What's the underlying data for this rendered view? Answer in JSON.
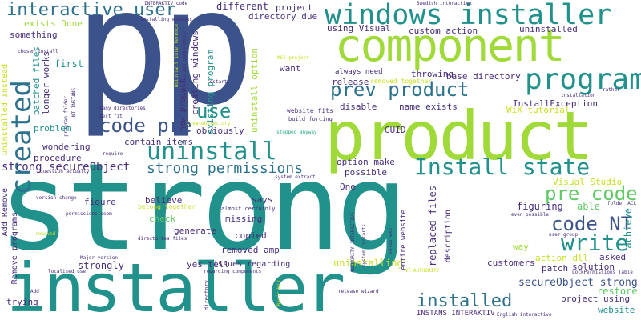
{
  "colors": {
    "navy": "#3b528b",
    "teal": "#21918c",
    "lime": "#a0da39",
    "green": "#5ec962",
    "yellow": "#c8e020",
    "mid": "#2c728e",
    "purple": "#472d7b",
    "deep": "#440154",
    "sea": "#28ae80"
  },
  "words": [
    {
      "text": "strong"
    },
    {
      "text": "pp"
    },
    {
      "text": "product"
    },
    {
      "text": "component"
    },
    {
      "text": "installer"
    },
    {
      "text": "windows installer"
    },
    {
      "text": "program"
    },
    {
      "text": "prev product"
    },
    {
      "text": "created"
    },
    {
      "text": "interactive user"
    },
    {
      "text": "uninstall"
    },
    {
      "text": "Install state"
    },
    {
      "text": "code pre"
    },
    {
      "text": "strong permissions"
    },
    {
      "text": "use"
    },
    {
      "text": "code NT"
    },
    {
      "text": "write"
    },
    {
      "text": "pre code"
    },
    {
      "text": "installed"
    },
    {
      "text": "secureObject strong"
    },
    {
      "text": "strong secureObject"
    },
    {
      "text": "different"
    },
    {
      "text": "project"
    },
    {
      "text": "directory due"
    },
    {
      "text": "using Visual"
    },
    {
      "text": "custom action"
    },
    {
      "text": "uninstalled"
    },
    {
      "text": "exists Done"
    },
    {
      "text": "something"
    },
    {
      "text": "patched files"
    },
    {
      "text": "longer works"
    },
    {
      "text": "first"
    },
    {
      "text": "problem"
    },
    {
      "text": "wondering"
    },
    {
      "text": "procedure"
    },
    {
      "text": "contain items"
    },
    {
      "text": "obviously"
    },
    {
      "text": "existing program"
    },
    {
      "text": "creating windows"
    },
    {
      "text": "new product"
    },
    {
      "text": "uninstall option"
    },
    {
      "text": "want"
    },
    {
      "text": "always need"
    },
    {
      "text": "release"
    },
    {
      "text": "throwing"
    },
    {
      "text": "base directory"
    },
    {
      "text": "removed together"
    },
    {
      "text": "disable"
    },
    {
      "text": "name exists"
    },
    {
      "text": "InstallException"
    },
    {
      "text": "WiX tutorial"
    },
    {
      "text": "GUID"
    },
    {
      "text": "achieve"
    },
    {
      "text": "option make"
    },
    {
      "text": "possible"
    },
    {
      "text": "One"
    },
    {
      "text": "says"
    },
    {
      "text": "believe"
    },
    {
      "text": "figure"
    },
    {
      "text": "check"
    },
    {
      "text": "generate"
    },
    {
      "text": "missing"
    },
    {
      "text": "copied"
    },
    {
      "text": "removed amp"
    },
    {
      "text": "issues regarding"
    },
    {
      "text": "yes tell"
    },
    {
      "text": "strongly"
    },
    {
      "text": "trying"
    },
    {
      "text": "Remove programs"
    },
    {
      "text": "Add Remove"
    },
    {
      "text": "uninstalled Instead"
    },
    {
      "text": "Visual Studio"
    },
    {
      "text": "figuring"
    },
    {
      "text": "able"
    },
    {
      "text": "way"
    },
    {
      "text": "asked"
    },
    {
      "text": "customers"
    },
    {
      "text": "solution"
    },
    {
      "text": "patch"
    },
    {
      "text": "restore"
    },
    {
      "text": "action dll"
    },
    {
      "text": "project using"
    },
    {
      "text": "website"
    },
    {
      "text": "uninstalling"
    },
    {
      "text": "replaced files"
    },
    {
      "text": "description"
    },
    {
      "text": "entire website"
    },
    {
      "text": "INSTANS INTERAKTIV"
    },
    {
      "text": "NT AUTHORITY"
    },
    {
      "text": "Major version"
    },
    {
      "text": "belong together"
    },
    {
      "text": "almost certainly"
    },
    {
      "text": "Swedish interactive"
    },
    {
      "text": "INTERAKTIV code"
    },
    {
      "text": "installing windows"
    },
    {
      "text": "MSI project"
    },
    {
      "text": "restart"
    },
    {
      "text": "website fits"
    },
    {
      "text": "build forcing"
    },
    {
      "text": "stopped anyway"
    },
    {
      "text": "CreateDirectory"
    },
    {
      "text": "many directories"
    },
    {
      "text": "best fit"
    },
    {
      "text": "require"
    },
    {
      "text": "question actually"
    },
    {
      "text": "version change"
    },
    {
      "text": "permissions seem"
    },
    {
      "text": "removed"
    },
    {
      "text": "localised user"
    },
    {
      "text": "regarding components"
    },
    {
      "text": "release wizard"
    },
    {
      "text": "English interactive"
    },
    {
      "text": "LockPermissions Table"
    },
    {
      "text": "user group"
    },
    {
      "text": "even possible"
    },
    {
      "text": "folder ACL"
    },
    {
      "text": "installation"
    },
    {
      "text": "rather"
    },
    {
      "text": "directories files"
    },
    {
      "text": "system extract"
    },
    {
      "text": "AUTHORITY INTERACTIVE"
    },
    {
      "text": "system restarts"
    },
    {
      "text": "setup exe"
    },
    {
      "text": "NT INSTANS"
    },
    {
      "text": "program folder"
    },
    {
      "text": "directory"
    },
    {
      "text": "Basic WiX"
    },
    {
      "text": "Add"
    },
    {
      "text": "chosen install"
    },
    {
      "text": "uninstall interference"
    },
    {
      "text": "installation components"
    }
  ]
}
